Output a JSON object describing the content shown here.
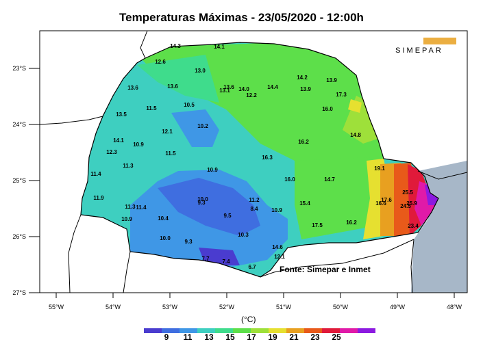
{
  "title": "Temperaturas Máximas - 23/05/2020 - 12:00h",
  "logo_text": "SIMEPAR",
  "source": "Fonte: Simepar e Inmet",
  "unit": "(°C)",
  "colorbar": {
    "ticks": [
      "9",
      "11",
      "13",
      "15",
      "17",
      "19",
      "21",
      "23",
      "25"
    ],
    "colors": [
      "#4a3ccf",
      "#3f6ee0",
      "#3f97e6",
      "#3ecfc0",
      "#3fdc8c",
      "#5ddf4a",
      "#9ee03a",
      "#e6e030",
      "#e8a020",
      "#e85a1a",
      "#e01a3a",
      "#e01aa8",
      "#8c1ae0"
    ]
  },
  "lon_labels": [
    "55°W",
    "54°W",
    "53°W",
    "52°W",
    "51°W",
    "50°W",
    "49°W",
    "48°W"
  ],
  "lat_labels": [
    "23°S",
    "24°S",
    "25°S",
    "26°S",
    "27°S"
  ],
  "stations": [
    {
      "v": "14.3"
    },
    {
      "v": "14.1"
    },
    {
      "v": "12.6"
    },
    {
      "v": "13.0"
    },
    {
      "v": "14.2"
    },
    {
      "v": "13.6"
    },
    {
      "v": "13.9"
    },
    {
      "v": "13.6"
    },
    {
      "v": "13.6"
    },
    {
      "v": "14.0"
    },
    {
      "v": "13.1"
    },
    {
      "v": "14.4"
    },
    {
      "v": "13.9"
    },
    {
      "v": "12.2"
    },
    {
      "v": "17.3"
    },
    {
      "v": "11.5"
    },
    {
      "v": "10.5"
    },
    {
      "v": "16.0"
    },
    {
      "v": "13.5"
    },
    {
      "v": "10.2"
    },
    {
      "v": "12.1"
    },
    {
      "v": "14.1"
    },
    {
      "v": "10.9"
    },
    {
      "v": "14.8"
    },
    {
      "v": "16.2"
    },
    {
      "v": "12.3"
    },
    {
      "v": "11.5"
    },
    {
      "v": "16.3"
    },
    {
      "v": "11.3"
    },
    {
      "v": "10.9"
    },
    {
      "v": "19.1"
    },
    {
      "v": "11.4"
    },
    {
      "v": "16.0"
    },
    {
      "v": "14.7"
    },
    {
      "v": "11.9"
    },
    {
      "v": "10.0"
    },
    {
      "v": "9.3"
    },
    {
      "v": "11.2"
    },
    {
      "v": "15.4"
    },
    {
      "v": "16.6"
    },
    {
      "v": "17.6"
    },
    {
      "v": "25.5"
    },
    {
      "v": "11.3"
    },
    {
      "v": "11.4"
    },
    {
      "v": "8.4"
    },
    {
      "v": "10.9"
    },
    {
      "v": "24.5"
    },
    {
      "v": "25.9"
    },
    {
      "v": "10.9"
    },
    {
      "v": "9.5"
    },
    {
      "v": "10.4"
    },
    {
      "v": "17.5"
    },
    {
      "v": "16.2"
    },
    {
      "v": "23.4"
    },
    {
      "v": "10.0"
    },
    {
      "v": "10.3"
    },
    {
      "v": "9.3"
    },
    {
      "v": "14.6"
    },
    {
      "v": "12.1"
    },
    {
      "v": "7.7"
    },
    {
      "v": "7.4"
    },
    {
      "v": "6.7"
    }
  ]
}
